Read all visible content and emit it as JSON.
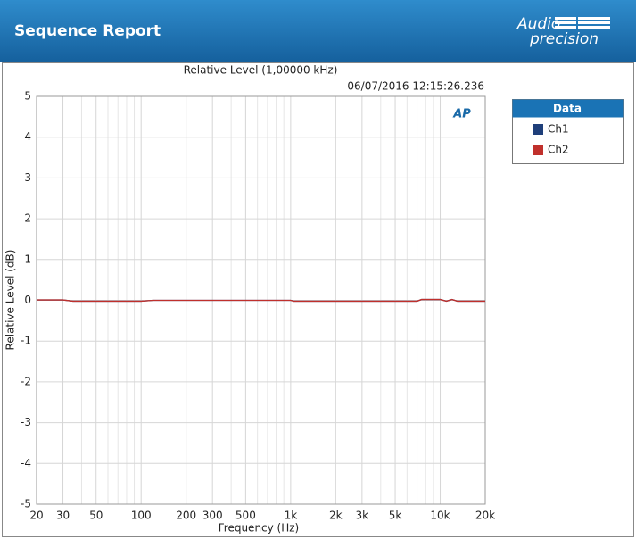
{
  "header": {
    "title": "Sequence Report",
    "logo": [
      "Audio",
      "precision"
    ]
  },
  "chart_data": {
    "type": "line",
    "title": "Relative Level (1,00000 kHz)",
    "subtitle": "06/07/2016 12:15:26.236",
    "plot_logo": "AP",
    "x_label": "Frequency (Hz)",
    "y_label": "Relative Level (dB)",
    "x_scale": "log",
    "grid": true,
    "legend": "right",
    "legend_title": "Data",
    "x": [
      20,
      30,
      35,
      100,
      120,
      1000,
      1050,
      7000,
      7500,
      10000,
      11000,
      12000,
      13000,
      20000
    ],
    "series": [
      {
        "name": "Ch1",
        "color": "#1f3f7a",
        "values": [
          0.01,
          0.01,
          -0.02,
          -0.02,
          0,
          0,
          -0.02,
          -0.02,
          0.02,
          0.02,
          -0.02,
          0.02,
          -0.02,
          -0.02
        ]
      },
      {
        "name": "Ch2",
        "color": "#c0302c",
        "values": [
          0.01,
          0.01,
          -0.02,
          -0.02,
          0,
          0,
          -0.02,
          -0.02,
          0.02,
          0.02,
          -0.02,
          0.02,
          -0.02,
          -0.02
        ]
      }
    ],
    "xlim": [
      20,
      20000
    ],
    "xticks": [
      20,
      30,
      50,
      100,
      200,
      300,
      500,
      {
        "value": 1000,
        "label": "1k"
      },
      {
        "value": 2000,
        "label": "2k"
      },
      {
        "value": 3000,
        "label": "3k"
      },
      {
        "value": 5000,
        "label": "5k"
      },
      {
        "value": 10000,
        "label": "10k"
      },
      {
        "value": 20000,
        "label": "20k"
      }
    ],
    "xminor": [
      40,
      60,
      70,
      80,
      90,
      400,
      600,
      700,
      800,
      900,
      4000,
      6000,
      7000,
      8000,
      9000
    ],
    "ylim": [
      -5,
      5
    ],
    "yticks": [
      -5,
      -4,
      -3,
      -2,
      -1,
      0,
      1,
      2,
      3,
      4,
      5
    ]
  }
}
